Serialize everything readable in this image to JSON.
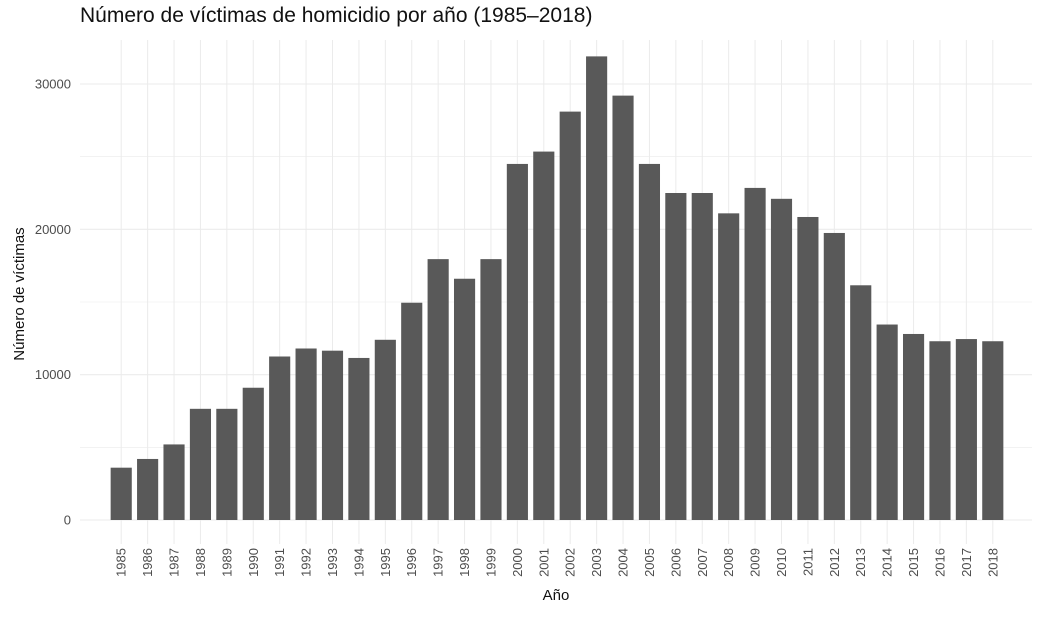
{
  "chart_data": {
    "type": "bar",
    "title": "Número de víctimas de homicidio por año (1985–2018)",
    "xlabel": "Año",
    "ylabel": "Número de víctimas",
    "categories": [
      "1985",
      "1986",
      "1987",
      "1988",
      "1989",
      "1990",
      "1991",
      "1992",
      "1993",
      "1994",
      "1995",
      "1996",
      "1997",
      "1998",
      "1999",
      "2000",
      "2001",
      "2002",
      "2003",
      "2004",
      "2005",
      "2006",
      "2007",
      "2008",
      "2009",
      "2010",
      "2011",
      "2012",
      "2013",
      "2014",
      "2015",
      "2016",
      "2017",
      "2018"
    ],
    "values": [
      3600,
      4200,
      5200,
      7650,
      7650,
      9100,
      11250,
      11800,
      11650,
      11150,
      12400,
      14950,
      17950,
      16600,
      17950,
      24500,
      25350,
      28100,
      31900,
      29200,
      24500,
      22500,
      22500,
      21100,
      22850,
      22100,
      20850,
      19750,
      16150,
      13450,
      12800,
      12300,
      12450,
      12300
    ],
    "yticks": [
      0,
      10000,
      20000,
      30000
    ],
    "ylim": [
      0,
      32600
    ],
    "grid": true,
    "legend": "none",
    "bar_color": "#595959",
    "grid_color": "#ebebeb",
    "text_color": "#4d4d4d"
  }
}
